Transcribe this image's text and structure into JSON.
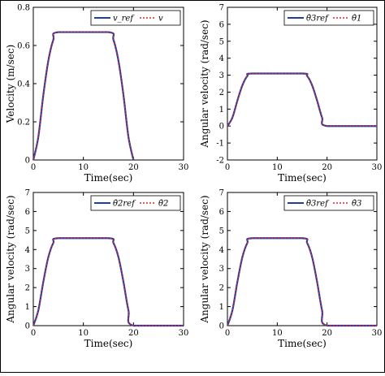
{
  "colors": {
    "ref": "#1f3ea8",
    "actual": "#e0242a",
    "axis": "#000000"
  },
  "chart_data": [
    {
      "type": "line",
      "xlabel": "Time(sec)",
      "ylabel": "Velocity (m/sec)",
      "xlim": [
        0,
        30
      ],
      "ylim": [
        0,
        0.8
      ],
      "xticks": [
        "0",
        "10",
        "20",
        "30"
      ],
      "yticks": [
        "0",
        "0.2",
        "0.4",
        "0.6",
        "0.8"
      ],
      "legend_position": "top-right",
      "legend": [
        "v_ref",
        "v"
      ],
      "series": [
        {
          "name": "v_ref",
          "style": "solid",
          "x": [
            0,
            1,
            2,
            3,
            4,
            5,
            15,
            16,
            17,
            18,
            19,
            20
          ],
          "y": [
            0,
            0.12,
            0.34,
            0.52,
            0.63,
            0.67,
            0.67,
            0.63,
            0.52,
            0.34,
            0.12,
            0
          ]
        },
        {
          "name": "v",
          "style": "dotted",
          "x": [
            0,
            1,
            2,
            3,
            4,
            5,
            15,
            16,
            17,
            18,
            19,
            20
          ],
          "y": [
            0,
            0.12,
            0.34,
            0.52,
            0.63,
            0.67,
            0.67,
            0.63,
            0.52,
            0.34,
            0.12,
            0
          ]
        }
      ]
    },
    {
      "type": "line",
      "xlabel": "Time(sec)",
      "ylabel": "Angular velocity (rad/sec)",
      "xlim": [
        0,
        30
      ],
      "ylim": [
        -2,
        7
      ],
      "xticks": [
        "0",
        "10",
        "20",
        "30"
      ],
      "yticks": [
        "-2",
        "-1",
        "0",
        "1",
        "2",
        "3",
        "4",
        "5",
        "6",
        "7"
      ],
      "legend_position": "top-right",
      "legend": [
        "θ̇3ref",
        "θ̇1"
      ],
      "series": [
        {
          "name": "θ̇3ref",
          "style": "solid",
          "x": [
            0,
            1,
            2,
            3,
            4,
            5,
            15,
            16,
            17,
            18,
            19,
            20,
            30
          ],
          "y": [
            0,
            0.5,
            1.5,
            2.4,
            2.95,
            3.1,
            3.1,
            2.95,
            2.4,
            1.5,
            0.5,
            0,
            0
          ]
        },
        {
          "name": "θ̇1",
          "style": "dotted",
          "x": [
            0,
            1,
            2,
            3,
            4,
            5,
            15,
            16,
            17,
            18,
            19,
            20,
            30
          ],
          "y": [
            0,
            0.5,
            1.5,
            2.4,
            2.95,
            3.1,
            3.1,
            2.95,
            2.4,
            1.5,
            0.5,
            0,
            0
          ]
        }
      ]
    },
    {
      "type": "line",
      "xlabel": "Time(sec)",
      "ylabel": "Angular velocity (rad/sec)",
      "xlim": [
        0,
        30
      ],
      "ylim": [
        0,
        7
      ],
      "xticks": [
        "0",
        "10",
        "20",
        "30"
      ],
      "yticks": [
        "0",
        "1",
        "2",
        "3",
        "4",
        "5",
        "6",
        "7"
      ],
      "legend_position": "top-right",
      "legend": [
        "θ̇2ref",
        "θ̇2"
      ],
      "series": [
        {
          "name": "θ̇2ref",
          "style": "solid",
          "x": [
            0,
            1,
            2,
            3,
            4,
            5,
            15,
            16,
            17,
            18,
            19,
            20,
            30
          ],
          "y": [
            0,
            0.8,
            2.3,
            3.6,
            4.35,
            4.6,
            4.6,
            4.35,
            3.6,
            2.3,
            0.8,
            0,
            0
          ]
        },
        {
          "name": "θ̇2",
          "style": "dotted",
          "x": [
            0,
            1,
            2,
            3,
            4,
            5,
            15,
            16,
            17,
            18,
            19,
            20,
            30
          ],
          "y": [
            0,
            0.8,
            2.3,
            3.6,
            4.35,
            4.6,
            4.6,
            4.35,
            3.6,
            2.3,
            0.8,
            0,
            0
          ]
        }
      ]
    },
    {
      "type": "line",
      "xlabel": "Time(sec)",
      "ylabel": "Angular velocity (rad/sec)",
      "xlim": [
        0,
        30
      ],
      "ylim": [
        0,
        7
      ],
      "xticks": [
        "0",
        "10",
        "20",
        "30"
      ],
      "yticks": [
        "0",
        "1",
        "2",
        "3",
        "4",
        "5",
        "6",
        "7"
      ],
      "legend_position": "top-right",
      "legend": [
        "θ̇3ref",
        "θ̇3"
      ],
      "series": [
        {
          "name": "θ̇3ref",
          "style": "solid",
          "x": [
            0,
            1,
            2,
            3,
            4,
            5,
            15,
            16,
            17,
            18,
            19,
            20,
            30
          ],
          "y": [
            0,
            0.8,
            2.3,
            3.6,
            4.35,
            4.6,
            4.6,
            4.35,
            3.6,
            2.3,
            0.8,
            0,
            0
          ]
        },
        {
          "name": "θ̇3",
          "style": "dotted",
          "x": [
            0,
            1,
            2,
            3,
            4,
            5,
            15,
            16,
            17,
            18,
            19,
            20,
            30
          ],
          "y": [
            0,
            0.8,
            2.3,
            3.6,
            4.35,
            4.6,
            4.6,
            4.35,
            3.6,
            2.3,
            0.8,
            0,
            0
          ]
        }
      ]
    }
  ]
}
